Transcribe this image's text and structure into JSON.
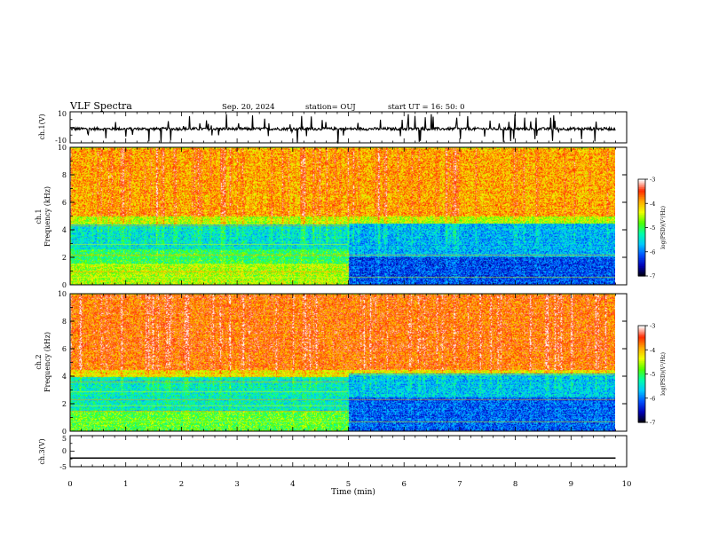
{
  "header": {
    "title": "VLF Spectra",
    "date": "Sep. 20, 2024",
    "station": "station= OUJ",
    "start": "start  UT =   16: 50: 0"
  },
  "chart_data": [
    {
      "type": "line",
      "name": "ch1-waveform",
      "ylabel": "ch.1(V)",
      "ylim": [
        -10,
        10
      ],
      "y_ticks": [
        "10",
        "-10"
      ],
      "x_range_min": [
        0,
        9.8
      ],
      "description": "noisy baseline near -1 V with frequent short spikes"
    },
    {
      "type": "heatmap",
      "name": "ch1-spectrogram",
      "ylabel": "ch.1\nFrequency (kHz)",
      "ylim": [
        0,
        10
      ],
      "y_ticks": [
        "0",
        "2",
        "4",
        "6",
        "8",
        "10"
      ],
      "x_range_min": [
        0,
        9.8
      ],
      "colorbar": {
        "label": "log(PSD)(V²/Hz)",
        "range": [
          -7,
          -3
        ],
        "ticks": [
          "-3",
          "-4",
          "-5",
          "-6",
          "-7"
        ]
      },
      "features": [
        {
          "t_min": [
            0,
            5
          ],
          "f_khz": [
            0,
            1.6
          ],
          "log_psd": -4.5,
          "note": "yellow/orange low band"
        },
        {
          "t_min": [
            0,
            5
          ],
          "f_khz": [
            1.6,
            2.6
          ],
          "log_psd": -5.0,
          "note": "green band"
        },
        {
          "t_min": [
            0,
            5
          ],
          "f_khz": [
            2.6,
            4.4
          ],
          "log_psd": -5.5,
          "note": "cyan band"
        },
        {
          "t_min": [
            5,
            9.8
          ],
          "f_khz": [
            0,
            2.0
          ],
          "log_psd": -6.3,
          "note": "dark blue band"
        },
        {
          "t_min": [
            5,
            9.8
          ],
          "f_khz": [
            2.0,
            4.5
          ],
          "log_psd": -5.8,
          "note": "blue/cyan band"
        },
        {
          "t_min": [
            0,
            9.8
          ],
          "f_khz": [
            5,
            10
          ],
          "log_psd": -3.8,
          "note": "red/orange upper region"
        }
      ]
    },
    {
      "type": "heatmap",
      "name": "ch2-spectrogram",
      "ylabel": "ch.2\nFrequency (kHz)",
      "ylim": [
        0,
        10
      ],
      "y_ticks": [
        "0",
        "2",
        "4",
        "6",
        "8",
        "10"
      ],
      "x_range_min": [
        0,
        9.8
      ],
      "colorbar": {
        "label": "log(PSD)(V²/Hz)",
        "range": [
          -7,
          -3
        ],
        "ticks": [
          "-3",
          "-4",
          "-5",
          "-6",
          "-7"
        ]
      },
      "features": [
        {
          "t_min": [
            0,
            5
          ],
          "f_khz": [
            0,
            1.5
          ],
          "log_psd": -4.8,
          "note": "green/yellow low band"
        },
        {
          "t_min": [
            0,
            5
          ],
          "f_khz": [
            1.5,
            4.0
          ],
          "log_psd": -5.4,
          "note": "cyan/green band"
        },
        {
          "t_min": [
            5,
            9.8
          ],
          "f_khz": [
            0,
            2.5
          ],
          "log_psd": -6.2,
          "note": "dark blue band"
        },
        {
          "t_min": [
            5,
            9.8
          ],
          "f_khz": [
            2.5,
            4.2
          ],
          "log_psd": -5.7,
          "note": "cyan band"
        },
        {
          "t_min": [
            0,
            9.8
          ],
          "f_khz": [
            4.5,
            10
          ],
          "log_psd": -3.5,
          "note": "red upper region"
        }
      ]
    },
    {
      "type": "line",
      "name": "ch3-waveform",
      "ylabel": "ch.3(V)",
      "ylim": [
        -5,
        5
      ],
      "y_ticks": [
        "5",
        "0",
        "-5"
      ],
      "x_range_min": [
        0,
        9.8
      ],
      "values_constant": -2.2
    }
  ],
  "x_axis": {
    "label": "Time (min)",
    "range": [
      0,
      10
    ],
    "ticks": [
      "0",
      "1",
      "2",
      "3",
      "4",
      "5",
      "6",
      "7",
      "8",
      "9",
      "10"
    ]
  },
  "colormap": [
    "#000000",
    "#0000b4",
    "#0050ff",
    "#00c8ff",
    "#00ffaa",
    "#50ff00",
    "#f0ff00",
    "#ffaa00",
    "#ff2a00",
    "#ffffff"
  ]
}
